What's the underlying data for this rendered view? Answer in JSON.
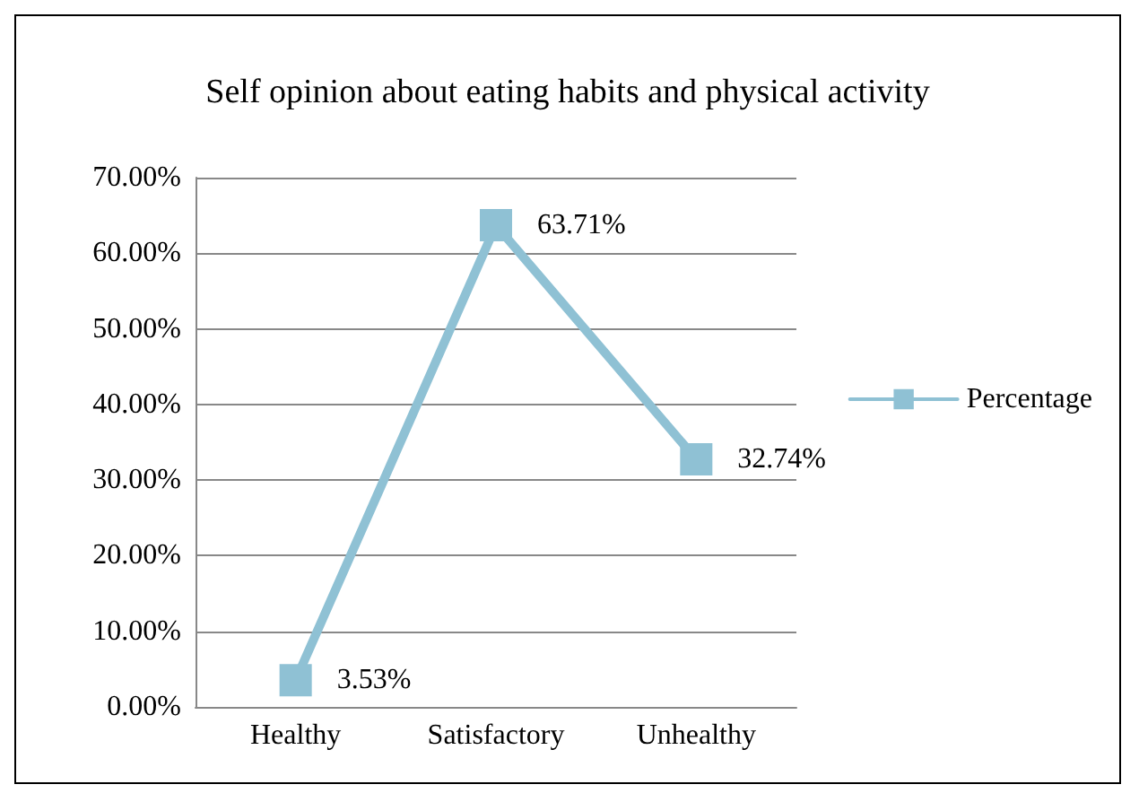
{
  "chart_data": {
    "type": "line",
    "title": "Self opinion about eating habits and physical activity",
    "categories": [
      "Healthy",
      "Satisfactory",
      "Unhealthy"
    ],
    "series": [
      {
        "name": "Percentage",
        "color": "#8fc1d4",
        "values": [
          3.53,
          63.71,
          32.74
        ],
        "value_labels": [
          "3.53%",
          "63.71%",
          "32.74%"
        ]
      }
    ],
    "ylim": [
      0,
      70
    ],
    "yticks": [
      {
        "value": 0,
        "label": "0.00%"
      },
      {
        "value": 10,
        "label": "10.00%"
      },
      {
        "value": 20,
        "label": "20.00%"
      },
      {
        "value": 30,
        "label": "30.00%"
      },
      {
        "value": 40,
        "label": "40.00%"
      },
      {
        "value": 50,
        "label": "50.00%"
      },
      {
        "value": 60,
        "label": "60.00%"
      },
      {
        "value": 70,
        "label": "70.00%"
      }
    ],
    "grid": "y",
    "legend": "right",
    "marker": "square",
    "line_style": "solid"
  }
}
